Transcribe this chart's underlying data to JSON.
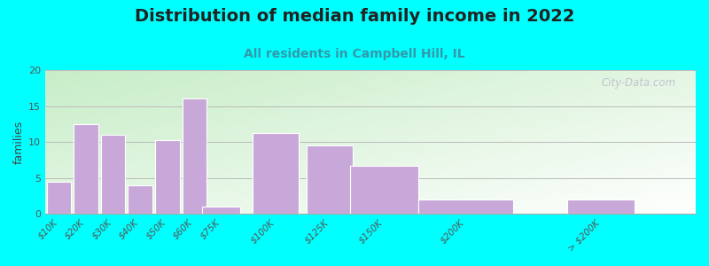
{
  "title": "Distribution of median family income in 2022",
  "subtitle": "All residents in Campbell Hill, IL",
  "ylabel": "families",
  "background_outer": "#00FFFF",
  "background_inner_topleft": "#c8e8c8",
  "background_inner_bottomright": "#ffffff",
  "bar_color": "#c8a8d8",
  "bar_edgecolor": "#ffffff",
  "categories": [
    "$10K",
    "$20K",
    "$30K",
    "$40K",
    "$50K",
    "$60K",
    "$75K",
    "$100K",
    "$125K",
    "$150K",
    "$200K",
    "> $200K"
  ],
  "values": [
    4.5,
    12.5,
    11.0,
    4.0,
    10.3,
    16.0,
    1.0,
    11.3,
    9.5,
    6.7,
    2.0,
    2.0
  ],
  "positions": [
    0,
    1,
    2,
    3,
    4,
    5,
    6,
    8,
    10,
    12,
    15,
    20
  ],
  "bar_widths": [
    0.9,
    0.9,
    0.9,
    0.9,
    0.9,
    0.9,
    1.4,
    1.7,
    1.7,
    2.5,
    3.5,
    2.5
  ],
  "ylim": [
    0,
    20
  ],
  "yticks": [
    0,
    5,
    10,
    15,
    20
  ],
  "grid_color": "#bbbbbb",
  "title_fontsize": 14,
  "subtitle_fontsize": 10,
  "ylabel_fontsize": 9,
  "tick_fontsize": 7.5,
  "watermark": "City-Data.com"
}
